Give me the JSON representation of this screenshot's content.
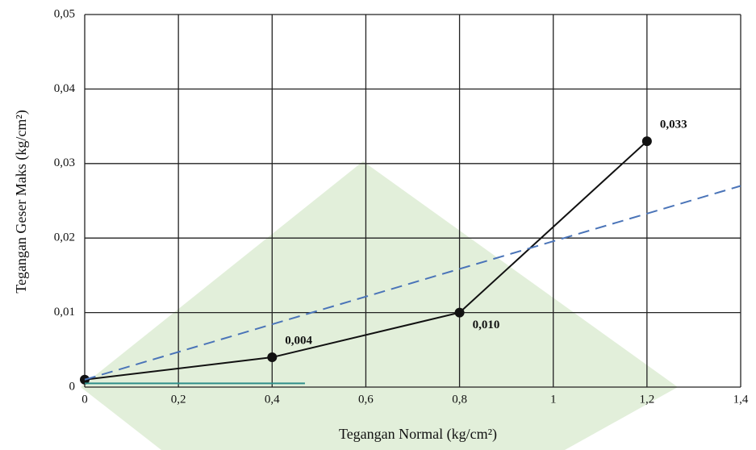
{
  "chart_data": {
    "type": "line",
    "x_label": "Tegangan Normal (kg/cm²)",
    "y_label": "Tegangan Geser Maks (kg/cm²)",
    "xlim": [
      0,
      1.4
    ],
    "xticks": [
      0,
      {
        "value": 0.2,
        "label": "0,2"
      },
      {
        "value": 0.4,
        "label": "0,4"
      },
      {
        "value": 0.6,
        "label": "0,6"
      },
      {
        "value": 0.8,
        "label": "0,8"
      },
      1,
      {
        "value": 1.2,
        "label": "1,2"
      },
      {
        "value": 1.4,
        "label": "1,4"
      }
    ],
    "ylim": [
      0,
      0.05
    ],
    "yticks": [
      0,
      {
        "value": 0.01,
        "label": "0,01"
      },
      {
        "value": 0.02,
        "label": "0,02"
      },
      {
        "value": 0.03,
        "label": "0,03"
      },
      {
        "value": 0.04,
        "label": "0,04"
      },
      {
        "value": 0.05,
        "label": "0,05"
      }
    ],
    "grid": true,
    "series": [
      {
        "color": "#111111",
        "style": "solid",
        "markers": true,
        "x": [
          0,
          0.4,
          0.8,
          1.2
        ],
        "values": [
          0.001,
          0.004,
          0.01,
          0.033
        ],
        "value_labels": [
          null,
          "0,004",
          "0,010",
          "0,033"
        ]
      },
      {
        "color": "#4a74b8",
        "style": "dashed",
        "markers": false,
        "x": [
          0,
          1.4
        ],
        "values": [
          0.001,
          0.027
        ]
      },
      {
        "color": "#2f8f8a",
        "style": "solid",
        "markers": false,
        "x": [
          0,
          0.47
        ],
        "values": [
          0.0005,
          0.0005
        ]
      }
    ]
  }
}
